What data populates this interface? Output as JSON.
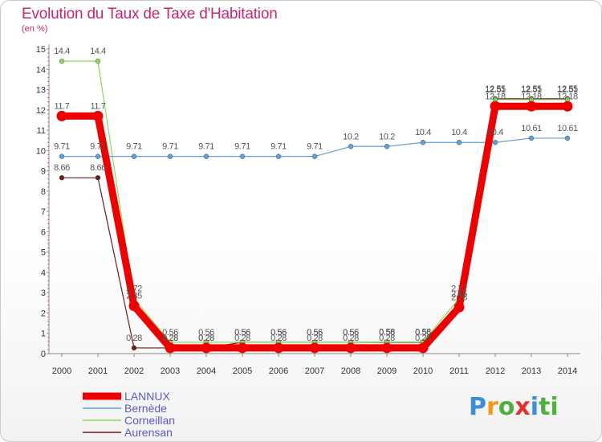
{
  "header": {
    "title": "Evolution du Taux de Taxe d'Habitation",
    "subtitle": "(en %)"
  },
  "logo": {
    "text": "Proxiti",
    "letters": [
      "P",
      "r",
      "o",
      "x",
      "i",
      "ti"
    ]
  },
  "chart_data": {
    "type": "line",
    "title": "Evolution du Taux de Taxe d'Habitation",
    "ylabel": "(en %)",
    "xlabel": "",
    "x": [
      "2000",
      "2001",
      "2002",
      "2003",
      "2004",
      "2005",
      "2006",
      "2007",
      "2008",
      "2009",
      "2010",
      "2011",
      "2012",
      "2013",
      "2014"
    ],
    "ylim": [
      0,
      15
    ],
    "yticks": [
      "0",
      "1",
      "2",
      "3",
      "4",
      "5",
      "6",
      "7",
      "8",
      "9",
      "10",
      "11",
      "12",
      "13",
      "14",
      "15"
    ],
    "legend_position": "bottom-left",
    "series": [
      {
        "name": "Aurensan",
        "color": "#6e1c1c",
        "values": [
          8.66,
          8.66,
          0.28,
          0.28,
          0.28,
          0.56,
          0.56,
          0.56,
          0.56,
          0.56,
          0.56,
          2.45,
          12.55,
          12.55,
          12.55
        ],
        "labels": [
          "8.66",
          "8.66",
          "0.28",
          "0.28",
          "0.28",
          "0.56",
          "0.56",
          "0.56",
          "0.56",
          "0.56",
          "0.56",
          "2.45",
          "12.55",
          "12.55",
          "12.55"
        ]
      },
      {
        "name": "Corneillan",
        "color": "#8ed85a",
        "values": [
          14.4,
          14.4,
          2.72,
          0.56,
          0.56,
          0.56,
          0.56,
          0.56,
          0.56,
          0.58,
          0.58,
          2.72,
          12.51,
          12.51,
          12.51
        ],
        "labels": [
          "14.4",
          "14.4",
          "2.72",
          "0.56",
          "0.56",
          "0.56",
          "0.56",
          "0.56",
          "0.56",
          "0.58",
          "0.58",
          "2.72",
          "12.51",
          "12.51",
          "12.51"
        ]
      },
      {
        "name": "Bernède",
        "color": "#5ea0d8",
        "values": [
          9.71,
          9.71,
          9.71,
          9.71,
          9.71,
          9.71,
          9.71,
          9.71,
          10.2,
          10.2,
          10.4,
          10.4,
          10.4,
          10.61,
          10.61
        ],
        "labels": [
          "9.71",
          "9.71",
          "9.71",
          "9.71",
          "9.71",
          "9.71",
          "9.71",
          "9.71",
          "10.2",
          "10.2",
          "10.4",
          "10.4",
          "10.4",
          "10.61",
          "10.61"
        ]
      },
      {
        "name": "LANNUX",
        "color": "#ee0000",
        "values": [
          11.7,
          11.7,
          2.35,
          0.28,
          0.28,
          0.28,
          0.28,
          0.28,
          0.28,
          0.28,
          0.28,
          2.28,
          12.18,
          12.18,
          12.18
        ],
        "labels": [
          "11.7",
          "11.7",
          "2.35",
          "0.28",
          "0.28",
          "0.28",
          "0.28",
          "0.28",
          "0.28",
          "0.28",
          "0.28",
          "2.28",
          "12.18",
          "12.18",
          "12.18"
        ]
      }
    ],
    "legend": [
      "LANNUX",
      "Bernède",
      "Corneillan",
      "Aurensan"
    ]
  }
}
